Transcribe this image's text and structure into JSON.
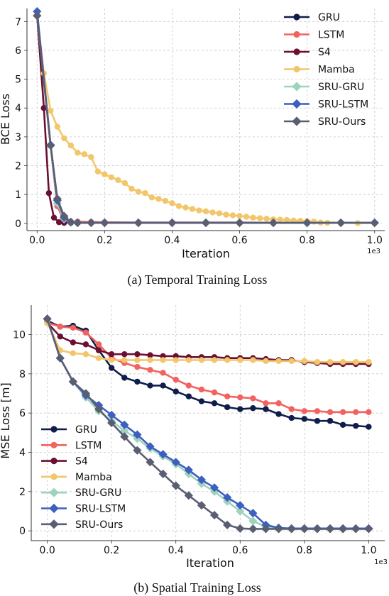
{
  "colors": {
    "GRU": "#0f1d4a",
    "LSTM": "#f2625e",
    "S4": "#6b0f33",
    "Mamba": "#f2c66b",
    "SRU-GRU": "#9ed3bd",
    "SRU-LSTM": "#3d5fbf",
    "SRU-Ours": "#5a5e73"
  },
  "markers": {
    "GRU": "circle",
    "LSTM": "circle",
    "S4": "circle",
    "Mamba": "circle",
    "SRU-GRU": "diamond",
    "SRU-LSTM": "diamond",
    "SRU-Ours": "diamond"
  },
  "chart_data": [
    {
      "type": "line",
      "caption": "(a)  Temporal Training Loss",
      "xlabel": "Iteration",
      "ylabel": "BCE Loss",
      "x_exponent": "1e3",
      "xlim": [
        -0.03,
        1.03
      ],
      "ylim": [
        -0.25,
        7.45
      ],
      "xticks": [
        "0.0",
        "0.2",
        "0.4",
        "0.6",
        "0.8",
        "1.0"
      ],
      "yticks": [
        "0",
        "1",
        "2",
        "3",
        "4",
        "5",
        "6",
        "7"
      ],
      "grid": true,
      "legend_position": "top-right",
      "series": [
        {
          "name": "GRU",
          "x": [
            0.0,
            0.04,
            0.06,
            0.08,
            0.1,
            0.12,
            0.16,
            0.2,
            0.3,
            0.4,
            0.5,
            0.6,
            0.7,
            0.8,
            0.9,
            1.0
          ],
          "y": [
            7.2,
            2.7,
            0.6,
            0.1,
            0.03,
            0.02,
            0.02,
            0.02,
            0.02,
            0.02,
            0.02,
            0.02,
            0.02,
            0.02,
            0.02,
            0.02
          ]
        },
        {
          "name": "LSTM",
          "x": [
            0.0,
            0.04,
            0.06,
            0.08,
            0.1,
            0.12,
            0.16,
            0.2,
            0.3,
            0.4,
            0.5,
            0.6,
            0.7,
            0.8,
            0.9,
            1.0
          ],
          "y": [
            7.2,
            2.7,
            0.6,
            0.1,
            0.05,
            0.06,
            0.05,
            0.04,
            0.03,
            0.03,
            0.03,
            0.03,
            0.02,
            0.02,
            0.02,
            0.02
          ]
        },
        {
          "name": "S4",
          "x": [
            0.0,
            0.02,
            0.035,
            0.05,
            0.065,
            0.08,
            0.1,
            0.12,
            0.2,
            0.3,
            0.4,
            0.5,
            0.6,
            0.7,
            0.8,
            0.9,
            1.0
          ],
          "y": [
            7.2,
            4.0,
            1.05,
            0.2,
            0.04,
            0.02,
            0.02,
            0.02,
            0.02,
            0.02,
            0.02,
            0.02,
            0.02,
            0.02,
            0.02,
            0.02,
            0.02
          ]
        },
        {
          "name": "Mamba",
          "x": [
            0.0,
            0.02,
            0.04,
            0.06,
            0.08,
            0.1,
            0.12,
            0.14,
            0.16,
            0.18,
            0.2,
            0.22,
            0.24,
            0.26,
            0.28,
            0.3,
            0.32,
            0.34,
            0.36,
            0.38,
            0.4,
            0.42,
            0.44,
            0.46,
            0.48,
            0.5,
            0.52,
            0.54,
            0.56,
            0.58,
            0.6,
            0.62,
            0.64,
            0.66,
            0.68,
            0.7,
            0.72,
            0.74,
            0.76,
            0.78,
            0.8,
            0.82,
            0.84,
            0.86,
            0.9,
            0.95,
            1.0
          ],
          "y": [
            7.2,
            5.2,
            3.9,
            3.35,
            2.95,
            2.7,
            2.45,
            2.4,
            2.3,
            1.8,
            1.7,
            1.6,
            1.5,
            1.4,
            1.2,
            1.1,
            1.05,
            0.9,
            0.85,
            0.78,
            0.7,
            0.6,
            0.55,
            0.5,
            0.45,
            0.42,
            0.38,
            0.35,
            0.3,
            0.28,
            0.26,
            0.23,
            0.2,
            0.18,
            0.16,
            0.14,
            0.13,
            0.12,
            0.1,
            0.09,
            0.08,
            0.06,
            0.03,
            0.02,
            0.02,
            0.01,
            0.01
          ]
        },
        {
          "name": "SRU-GRU",
          "x": [
            0.0,
            0.04,
            0.06,
            0.08,
            0.1,
            0.12,
            0.16,
            0.2,
            0.3,
            0.4,
            0.5,
            0.6,
            0.7,
            0.8,
            0.9,
            1.0
          ],
          "y": [
            7.2,
            2.7,
            0.7,
            0.15,
            0.04,
            0.02,
            0.02,
            0.02,
            0.02,
            0.02,
            0.02,
            0.02,
            0.02,
            0.02,
            0.02,
            0.02
          ]
        },
        {
          "name": "SRU-LSTM",
          "x": [
            0.0,
            0.04,
            0.06,
            0.08,
            0.1,
            0.12,
            0.16,
            0.2,
            0.3,
            0.4,
            0.5,
            0.6,
            0.7,
            0.8,
            0.9,
            1.0
          ],
          "y": [
            7.35,
            2.72,
            0.8,
            0.2,
            0.04,
            0.02,
            0.02,
            0.02,
            0.02,
            0.02,
            0.02,
            0.02,
            0.02,
            0.02,
            0.02,
            0.02
          ]
        },
        {
          "name": "SRU-Ours",
          "x": [
            0.0,
            0.04,
            0.06,
            0.08,
            0.1,
            0.12,
            0.16,
            0.2,
            0.3,
            0.4,
            0.5,
            0.6,
            0.7,
            0.8,
            0.9,
            1.0
          ],
          "y": [
            7.2,
            2.7,
            0.85,
            0.25,
            0.05,
            0.02,
            0.02,
            0.02,
            0.02,
            0.02,
            0.02,
            0.02,
            0.02,
            0.02,
            0.02,
            0.02
          ]
        }
      ]
    },
    {
      "type": "line",
      "caption": "(b)  Spatial Training Loss",
      "xlabel": "Iteration",
      "ylabel": "MSE Loss [m]",
      "x_exponent": "1e3",
      "xlim": [
        -0.05,
        1.05
      ],
      "ylim": [
        -0.5,
        11.5
      ],
      "xticks": [
        "0.0",
        "0.2",
        "0.4",
        "0.6",
        "0.8",
        "1.0"
      ],
      "yticks": [
        "0",
        "2",
        "4",
        "6",
        "8",
        "10"
      ],
      "grid": true,
      "legend_position": "bottom-left",
      "series": [
        {
          "name": "GRU",
          "x": [
            0.0,
            0.04,
            0.08,
            0.12,
            0.16,
            0.2,
            0.24,
            0.28,
            0.32,
            0.36,
            0.4,
            0.44,
            0.48,
            0.52,
            0.56,
            0.6,
            0.64,
            0.68,
            0.72,
            0.76,
            0.8,
            0.84,
            0.88,
            0.92,
            0.96,
            1.0
          ],
          "y": [
            10.7,
            10.4,
            10.45,
            10.2,
            9.2,
            8.3,
            7.8,
            7.6,
            7.4,
            7.4,
            7.1,
            6.85,
            6.6,
            6.5,
            6.3,
            6.2,
            6.25,
            6.2,
            5.95,
            5.75,
            5.7,
            5.6,
            5.6,
            5.4,
            5.35,
            5.3
          ]
        },
        {
          "name": "LSTM",
          "x": [
            0.0,
            0.04,
            0.08,
            0.12,
            0.16,
            0.2,
            0.24,
            0.28,
            0.32,
            0.36,
            0.4,
            0.44,
            0.48,
            0.52,
            0.56,
            0.6,
            0.64,
            0.68,
            0.72,
            0.76,
            0.8,
            0.84,
            0.88,
            0.92,
            0.96,
            1.0
          ],
          "y": [
            10.6,
            10.4,
            10.35,
            10.1,
            9.5,
            8.8,
            8.55,
            8.35,
            8.2,
            8.05,
            7.7,
            7.4,
            7.2,
            7.05,
            6.85,
            6.8,
            6.75,
            6.5,
            6.5,
            6.2,
            6.1,
            6.1,
            6.05,
            6.05,
            6.05,
            6.05
          ]
        },
        {
          "name": "S4",
          "x": [
            0.0,
            0.04,
            0.08,
            0.12,
            0.16,
            0.2,
            0.24,
            0.28,
            0.32,
            0.36,
            0.4,
            0.44,
            0.48,
            0.52,
            0.56,
            0.6,
            0.64,
            0.68,
            0.72,
            0.76,
            0.8,
            0.84,
            0.88,
            0.92,
            0.96,
            1.0
          ],
          "y": [
            10.6,
            9.9,
            9.6,
            9.5,
            9.2,
            9.0,
            9.0,
            9.0,
            8.95,
            8.9,
            8.9,
            8.85,
            8.85,
            8.85,
            8.8,
            8.8,
            8.8,
            8.75,
            8.7,
            8.7,
            8.6,
            8.55,
            8.5,
            8.5,
            8.5,
            8.5
          ]
        },
        {
          "name": "Mamba",
          "x": [
            0.0,
            0.04,
            0.08,
            0.12,
            0.16,
            0.2,
            0.24,
            0.28,
            0.32,
            0.36,
            0.4,
            0.44,
            0.48,
            0.52,
            0.56,
            0.6,
            0.64,
            0.68,
            0.72,
            0.76,
            0.8,
            0.84,
            0.88,
            0.92,
            0.96,
            1.0
          ],
          "y": [
            10.6,
            9.2,
            9.05,
            9.0,
            8.8,
            8.7,
            8.7,
            8.7,
            8.7,
            8.7,
            8.7,
            8.7,
            8.7,
            8.7,
            8.7,
            8.7,
            8.7,
            8.65,
            8.65,
            8.65,
            8.65,
            8.6,
            8.6,
            8.6,
            8.6,
            8.6
          ]
        },
        {
          "name": "SRU-GRU",
          "x": [
            0.0,
            0.04,
            0.08,
            0.12,
            0.16,
            0.2,
            0.24,
            0.28,
            0.32,
            0.36,
            0.4,
            0.44,
            0.48,
            0.52,
            0.56,
            0.6,
            0.64,
            0.68,
            0.72,
            0.76,
            0.8,
            0.84,
            0.88,
            0.92,
            0.96,
            1.0
          ],
          "y": [
            10.8,
            8.8,
            7.6,
            6.8,
            6.1,
            5.6,
            5.1,
            4.7,
            4.2,
            3.8,
            3.4,
            2.9,
            2.4,
            2.0,
            1.5,
            1.0,
            0.5,
            0.2,
            0.12,
            0.1,
            0.1,
            0.1,
            0.1,
            0.1,
            0.1,
            0.1
          ]
        },
        {
          "name": "SRU-LSTM",
          "x": [
            0.0,
            0.04,
            0.08,
            0.12,
            0.16,
            0.2,
            0.24,
            0.28,
            0.32,
            0.36,
            0.4,
            0.44,
            0.48,
            0.52,
            0.56,
            0.6,
            0.64,
            0.68,
            0.72,
            0.76,
            0.8,
            0.84,
            0.88,
            0.92,
            0.96,
            1.0
          ],
          "y": [
            10.8,
            8.8,
            7.6,
            6.9,
            6.4,
            5.9,
            5.4,
            4.9,
            4.3,
            3.9,
            3.5,
            3.1,
            2.6,
            2.2,
            1.7,
            1.3,
            0.9,
            0.3,
            0.15,
            0.12,
            0.12,
            0.12,
            0.12,
            0.12,
            0.12,
            0.12
          ]
        },
        {
          "name": "SRU-Ours",
          "x": [
            0.0,
            0.04,
            0.08,
            0.12,
            0.16,
            0.2,
            0.24,
            0.28,
            0.32,
            0.36,
            0.4,
            0.44,
            0.48,
            0.52,
            0.56,
            0.6,
            0.64,
            0.68,
            0.72,
            0.76,
            0.8,
            0.84,
            0.88,
            0.92,
            0.96,
            1.0
          ],
          "y": [
            10.8,
            8.8,
            7.6,
            7.0,
            6.2,
            5.5,
            4.8,
            4.1,
            3.5,
            2.9,
            2.3,
            1.8,
            1.3,
            0.8,
            0.3,
            0.12,
            0.1,
            0.1,
            0.1,
            0.1,
            0.1,
            0.1,
            0.1,
            0.1,
            0.1,
            0.1
          ]
        }
      ]
    }
  ]
}
